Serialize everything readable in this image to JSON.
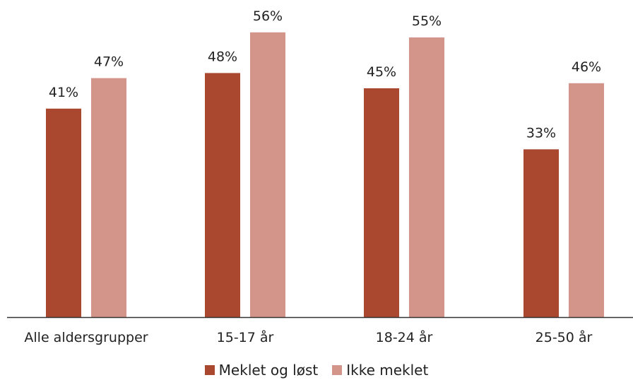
{
  "chart_data": {
    "type": "bar",
    "categories": [
      "Alle aldersgrupper",
      "15-17 år",
      "18-24 år",
      "25-50 år"
    ],
    "series": [
      {
        "name": "Meklet og løst",
        "color": "#A9472F",
        "values": [
          41,
          48,
          45,
          33
        ],
        "labels": [
          "41%",
          "48%",
          "45%",
          "33%"
        ]
      },
      {
        "name": "Ikke meklet",
        "color": "#D3958A",
        "values": [
          47,
          56,
          55,
          46
        ],
        "labels": [
          "47%",
          "56%",
          "55%",
          "46%"
        ]
      }
    ],
    "ylim": [
      0,
      60
    ],
    "grid": false,
    "legend_position": "bottom-center"
  }
}
